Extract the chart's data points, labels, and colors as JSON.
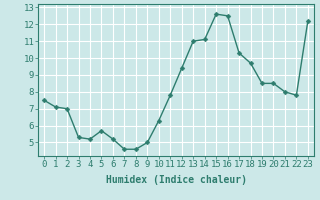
{
  "x": [
    0,
    1,
    2,
    3,
    4,
    5,
    6,
    7,
    8,
    9,
    10,
    11,
    12,
    13,
    14,
    15,
    16,
    17,
    18,
    19,
    20,
    21,
    22,
    23
  ],
  "y": [
    7.5,
    7.1,
    7.0,
    5.3,
    5.2,
    5.7,
    5.2,
    4.6,
    4.6,
    5.0,
    6.3,
    7.8,
    9.4,
    11.0,
    11.1,
    12.6,
    12.5,
    10.3,
    9.7,
    8.5,
    8.5,
    8.0,
    7.8,
    12.2
  ],
  "line_color": "#2e7d6e",
  "marker_color": "#2e7d6e",
  "bg_color": "#cce8e8",
  "grid_color": "#ffffff",
  "xlabel": "Humidex (Indice chaleur)",
  "xlim": [
    -0.5,
    23.5
  ],
  "ylim": [
    4.2,
    13.2
  ],
  "xticks": [
    0,
    1,
    2,
    3,
    4,
    5,
    6,
    7,
    8,
    9,
    10,
    11,
    12,
    13,
    14,
    15,
    16,
    17,
    18,
    19,
    20,
    21,
    22,
    23
  ],
  "yticks": [
    5,
    6,
    7,
    8,
    9,
    10,
    11,
    12,
    13
  ],
  "xlabel_fontsize": 7,
  "tick_fontsize": 6.5,
  "linewidth": 1.0,
  "markersize": 2.5
}
